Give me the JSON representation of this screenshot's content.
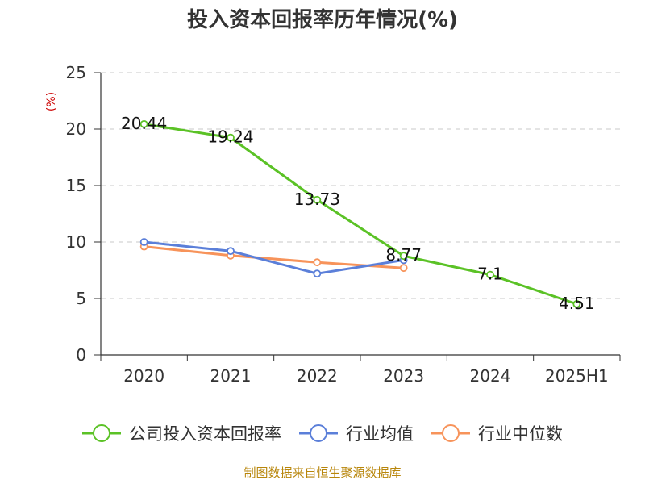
{
  "chart_data": {
    "type": "line",
    "title": "投入资本回报率历年情况(%)",
    "ylabel": "(%)",
    "categories": [
      "2020",
      "2021",
      "2022",
      "2023",
      "2024",
      "2025H1"
    ],
    "ylim": [
      0,
      25
    ],
    "yticks": [
      0,
      5,
      10,
      15,
      20,
      25
    ],
    "grid": true,
    "legend_position": "bottom",
    "series": [
      {
        "name": "公司投入资本回报率",
        "color": "#5bc226",
        "values": [
          20.44,
          19.24,
          13.73,
          8.77,
          7.1,
          4.51
        ],
        "labels": [
          "20.44",
          "19.24",
          "13.73",
          "8.77",
          "7.1",
          "4.51"
        ]
      },
      {
        "name": "行业均值",
        "color": "#5b7fd9",
        "values": [
          10.0,
          9.2,
          7.2,
          8.4,
          null,
          null
        ]
      },
      {
        "name": "行业中位数",
        "color": "#f7935a",
        "values": [
          9.6,
          8.8,
          8.2,
          7.7,
          null,
          null
        ]
      }
    ],
    "source": "制图数据来自恒生聚源数据库"
  }
}
